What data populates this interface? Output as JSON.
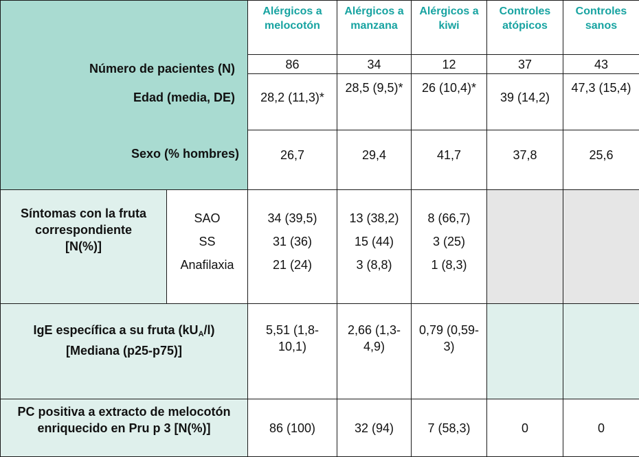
{
  "headers": [
    "Alérgicos a melocotón",
    "Alérgicos a manzana",
    "Alérgicos a kiwi",
    "Controles atópicos",
    "Controles sanos"
  ],
  "rows": {
    "pacientes": {
      "label": "Número de pacientes (N)",
      "values": [
        "86",
        "34",
        "12",
        "37",
        "43"
      ]
    },
    "edad": {
      "label": "Edad (media, DE)",
      "values": [
        "28,2 (11,3)*",
        "28,5 (9,5)*",
        "26 (10,4)*",
        "39 (14,2)",
        "47,3 (15,4)"
      ]
    },
    "sexo": {
      "label": "Sexo (% hombres)",
      "values": [
        "26,7",
        "29,4",
        "41,7",
        "37,8",
        "25,6"
      ]
    }
  },
  "sintomas": {
    "label": "Síntomas con la fruta correspondiente [N(%)]",
    "sub_labels": [
      "SAO",
      "SS",
      "Anafilaxia"
    ],
    "melocoton": [
      "34 (39,5)",
      "31 (36)",
      "21 (24)"
    ],
    "manzana": [
      "13 (38,2)",
      "15 (44)",
      "3 (8,8)"
    ],
    "kiwi": [
      "8 (66,7)",
      "3 (25)",
      "1 (8,3)"
    ]
  },
  "ige": {
    "label_pre": "IgE específica a su fruta (kU",
    "label_sub": "A",
    "label_post": "/l)",
    "label_line2": "[Mediana (p25-p75)]",
    "values": [
      "5,51 (1,8-10,1)",
      "2,66 (1,3-4,9)",
      "0,79 (0,59-3)"
    ]
  },
  "pc": {
    "label": "PC positiva a extracto de melocotón enriquecido en Pru p 3 [N(%)]",
    "values": [
      "86 (100)",
      "32 (94)",
      "7 (58,3)",
      "0",
      "0"
    ]
  }
}
